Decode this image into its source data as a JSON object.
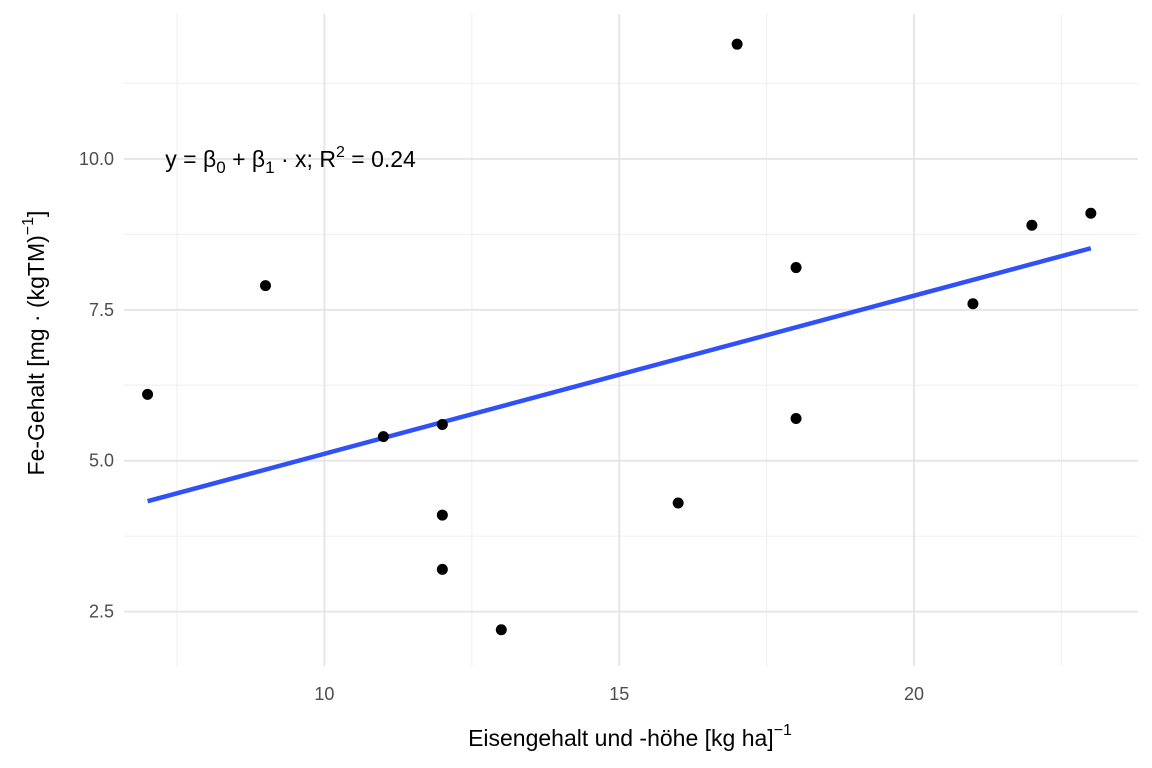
{
  "chart_data": {
    "type": "scatter",
    "xlabel": "Eisengehalt und -höhe [kg ha]",
    "xlabel_sup": "−1",
    "ylabel": "Fe-Gehalt [mg · (kgTM)",
    "ylabel_sup": "−1",
    "ylabel_end": "]",
    "xlim": [
      6.6,
      23.8
    ],
    "ylim": [
      1.6,
      12.4
    ],
    "x_ticks": [
      10,
      15,
      20
    ],
    "x_tick_labels": [
      "10",
      "15",
      "20"
    ],
    "x_minor_ticks": [
      7.5,
      12.5,
      17.5,
      22.5
    ],
    "y_ticks": [
      2.5,
      5.0,
      7.5,
      10.0
    ],
    "y_tick_labels": [
      "2.5",
      "5.0",
      "7.5",
      "10.0"
    ],
    "y_minor_ticks": [
      3.75,
      6.25,
      8.75,
      11.25
    ],
    "grid": true,
    "points": [
      {
        "x": 7,
        "y": 6.1
      },
      {
        "x": 9,
        "y": 7.9
      },
      {
        "x": 11,
        "y": 5.4
      },
      {
        "x": 12,
        "y": 5.6
      },
      {
        "x": 12,
        "y": 4.1
      },
      {
        "x": 12,
        "y": 3.2
      },
      {
        "x": 13,
        "y": 2.2
      },
      {
        "x": 16,
        "y": 4.3
      },
      {
        "x": 17,
        "y": 11.9
      },
      {
        "x": 18,
        "y": 8.2
      },
      {
        "x": 18,
        "y": 5.7
      },
      {
        "x": 21,
        "y": 7.6
      },
      {
        "x": 22,
        "y": 8.9
      },
      {
        "x": 23,
        "y": 9.1
      }
    ],
    "fit_line": {
      "x": [
        7,
        23
      ],
      "y": [
        4.33,
        8.52
      ],
      "color": "#3050f8"
    },
    "annotation": {
      "x": 7.3,
      "y": 10.0,
      "prefix": "y = β",
      "b0_sub": "0",
      "plus": " + β",
      "b1_sub": "1",
      "mid": " · x;  R",
      "r2_sup": "2",
      "value": " = 0.24"
    }
  }
}
